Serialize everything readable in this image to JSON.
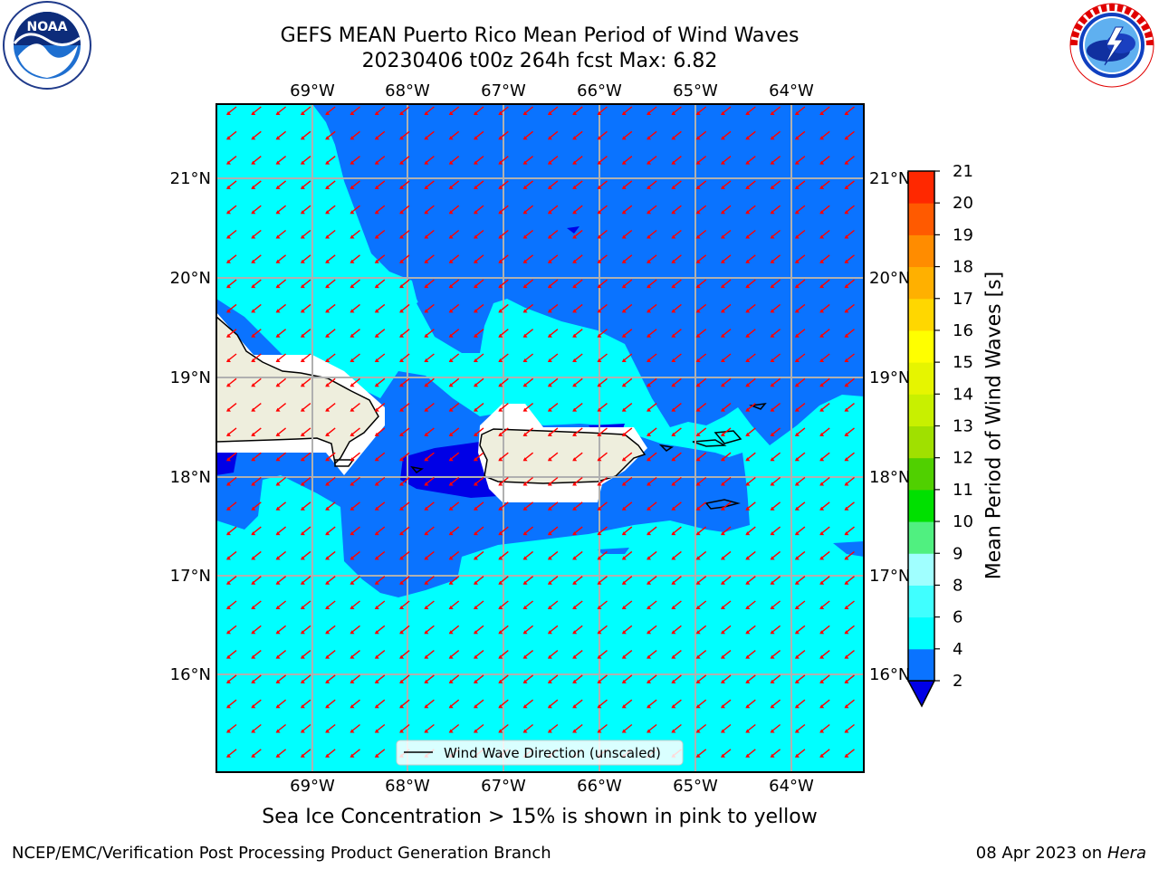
{
  "header": {
    "title": "GEFS MEAN Puerto Rico Mean Period of Wind Waves",
    "subtitle": "20230406 t00z 264h fcst   Max: 6.82"
  },
  "logos": {
    "left": "noaa-logo",
    "right": "nws-logo"
  },
  "map": {
    "lon_labels": [
      "69°W",
      "68°W",
      "67°W",
      "66°W",
      "65°W",
      "64°W"
    ],
    "lat_labels": [
      "21°N",
      "20°N",
      "19°N",
      "18°N",
      "17°N",
      "16°N"
    ],
    "legend_label": "Wind Wave Direction (unscaled)",
    "colors": {
      "band_2_4": "#0a73ff",
      "band_4_6": "#00ffff",
      "below_2": "#0000e6",
      "land": "#eeeedd",
      "arrows": "#ff0000"
    }
  },
  "colorbar": {
    "title": "Mean Period of Wind Waves [s]",
    "ticks": [
      "2",
      "4",
      "6",
      "8",
      "9",
      "10",
      "11",
      "12",
      "13",
      "14",
      "15",
      "16",
      "17",
      "18",
      "19",
      "20",
      "21"
    ],
    "colors": [
      "#0a73ff",
      "#00ffff",
      "#40ffff",
      "#a0ffff",
      "#50f080",
      "#00e000",
      "#50d000",
      "#a0e000",
      "#c8f000",
      "#e6f500",
      "#ffff00",
      "#ffd700",
      "#ffb000",
      "#ff8c00",
      "#ff5a00",
      "#ff2800",
      "#ff0000"
    ],
    "under_color": "#0000e6"
  },
  "footer": {
    "ice_note": "Sea Ice Concentration > 15% is shown in pink to yellow",
    "left": "NCEP/EMC/Verification Post Processing Product Generation Branch",
    "date": "08 Apr 2023 on ",
    "host": "Hera"
  }
}
